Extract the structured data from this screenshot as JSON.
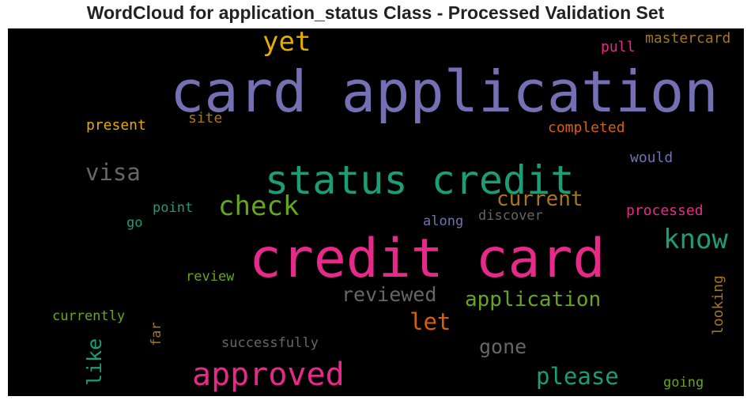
{
  "title": "WordCloud for application_status Class - Processed Validation Set",
  "chart_data": {
    "type": "wordcloud",
    "background": "#000000",
    "words": [
      {
        "text": "card application",
        "color": "#7570b3",
        "orientation": "horizontal"
      },
      {
        "text": "credit card",
        "color": "#e7298a",
        "orientation": "horizontal"
      },
      {
        "text": "status credit",
        "color": "#1b9e77",
        "orientation": "horizontal"
      },
      {
        "text": "approved",
        "color": "#e7298a",
        "orientation": "horizontal"
      },
      {
        "text": "yet",
        "color": "#e6ab02",
        "orientation": "horizontal"
      },
      {
        "text": "check",
        "color": "#66a61e",
        "orientation": "horizontal"
      },
      {
        "text": "know",
        "color": "#1b9e77",
        "orientation": "horizontal"
      },
      {
        "text": "please",
        "color": "#1b9e77",
        "orientation": "horizontal"
      },
      {
        "text": "visa",
        "color": "#666666",
        "orientation": "horizontal"
      },
      {
        "text": "application",
        "color": "#66a61e",
        "orientation": "horizontal"
      },
      {
        "text": "current",
        "color": "#a6761d",
        "orientation": "horizontal"
      },
      {
        "text": "reviewed",
        "color": "#666666",
        "orientation": "horizontal"
      },
      {
        "text": "let",
        "color": "#d95f02",
        "orientation": "horizontal"
      },
      {
        "text": "gone",
        "color": "#666666",
        "orientation": "horizontal"
      },
      {
        "text": "like",
        "color": "#1b9e77",
        "orientation": "vertical"
      },
      {
        "text": "mastercard",
        "color": "#a6761d",
        "orientation": "horizontal"
      },
      {
        "text": "pull",
        "color": "#e7298a",
        "orientation": "horizontal"
      },
      {
        "text": "present",
        "color": "#e6ab02",
        "orientation": "horizontal"
      },
      {
        "text": "site",
        "color": "#a6761d",
        "orientation": "horizontal"
      },
      {
        "text": "completed",
        "color": "#d95f02",
        "orientation": "horizontal"
      },
      {
        "text": "would",
        "color": "#7570b3",
        "orientation": "horizontal"
      },
      {
        "text": "point",
        "color": "#1b9e77",
        "orientation": "horizontal"
      },
      {
        "text": "go",
        "color": "#1b9e77",
        "orientation": "horizontal"
      },
      {
        "text": "along",
        "color": "#7570b3",
        "orientation": "horizontal"
      },
      {
        "text": "discover",
        "color": "#666666",
        "orientation": "horizontal"
      },
      {
        "text": "processed",
        "color": "#e7298a",
        "orientation": "horizontal"
      },
      {
        "text": "review",
        "color": "#66a61e",
        "orientation": "horizontal"
      },
      {
        "text": "currently",
        "color": "#66a61e",
        "orientation": "horizontal"
      },
      {
        "text": "far",
        "color": "#a6761d",
        "orientation": "vertical"
      },
      {
        "text": "successfully",
        "color": "#666666",
        "orientation": "horizontal"
      },
      {
        "text": "looking",
        "color": "#a6761d",
        "orientation": "vertical"
      },
      {
        "text": "going",
        "color": "#66a61e",
        "orientation": "horizontal"
      }
    ]
  }
}
